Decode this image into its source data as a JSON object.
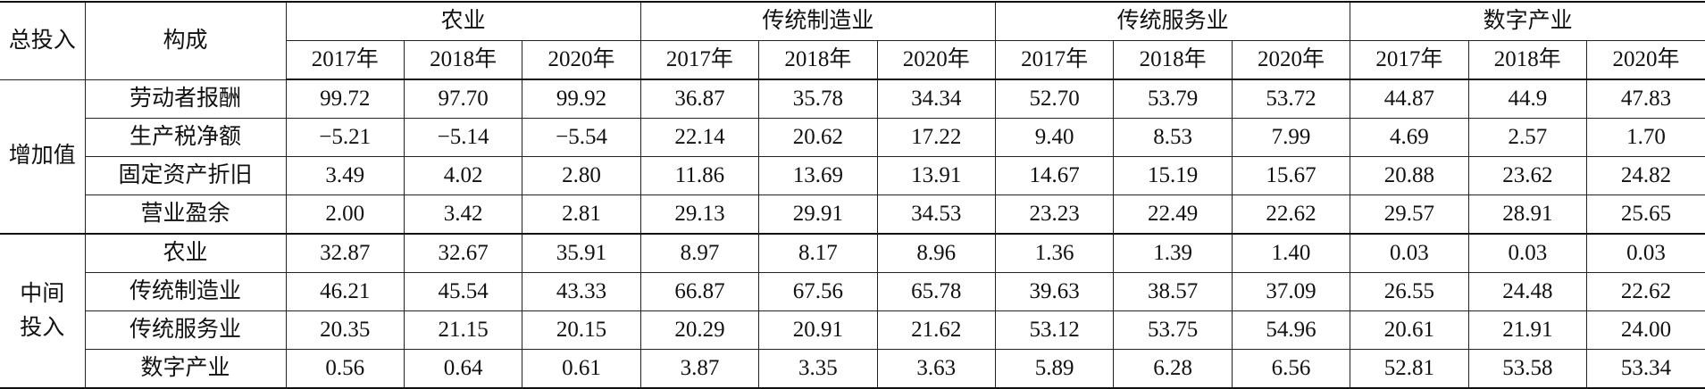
{
  "table": {
    "header": {
      "total": "总投入",
      "composition": "构成",
      "sectors": [
        "农业",
        "传统制造业",
        "传统服务业",
        "数字产业"
      ],
      "years": [
        "2017年",
        "2018年",
        "2020年",
        "2017年",
        "2018年",
        "2020年",
        "2017年",
        "2018年",
        "2020年",
        "2017年",
        "2018年",
        "2020年"
      ]
    },
    "groups": [
      {
        "label": "增加值",
        "rows": [
          {
            "label": "劳动者报酬",
            "values": [
              "99.72",
              "97.70",
              "99.92",
              "36.87",
              "35.78",
              "34.34",
              "52.70",
              "53.79",
              "53.72",
              "44.87",
              "44.9",
              "47.83"
            ]
          },
          {
            "label": "生产税净额",
            "values": [
              "−5.21",
              "−5.14",
              "−5.54",
              "22.14",
              "20.62",
              "17.22",
              "9.40",
              "8.53",
              "7.99",
              "4.69",
              "2.57",
              "1.70"
            ]
          },
          {
            "label": "固定资产折旧",
            "values": [
              "3.49",
              "4.02",
              "2.80",
              "11.86",
              "13.69",
              "13.91",
              "14.67",
              "15.19",
              "15.67",
              "20.88",
              "23.62",
              "24.82"
            ]
          },
          {
            "label": "营业盈余",
            "values": [
              "2.00",
              "3.42",
              "2.81",
              "29.13",
              "29.91",
              "34.53",
              "23.23",
              "22.49",
              "22.62",
              "29.57",
              "28.91",
              "25.65"
            ]
          }
        ]
      },
      {
        "label": "中间\n投入",
        "rows": [
          {
            "label": "农业",
            "values": [
              "32.87",
              "32.67",
              "35.91",
              "8.97",
              "8.17",
              "8.96",
              "1.36",
              "1.39",
              "1.40",
              "0.03",
              "0.03",
              "0.03"
            ]
          },
          {
            "label": "传统制造业",
            "values": [
              "46.21",
              "45.54",
              "43.33",
              "66.87",
              "67.56",
              "65.78",
              "39.63",
              "38.57",
              "37.09",
              "26.55",
              "24.48",
              "22.62"
            ]
          },
          {
            "label": "传统服务业",
            "values": [
              "20.35",
              "21.15",
              "20.15",
              "20.29",
              "20.91",
              "21.62",
              "53.12",
              "53.75",
              "54.96",
              "20.61",
              "21.91",
              "24.00"
            ]
          },
          {
            "label": "数字产业",
            "values": [
              "0.56",
              "0.64",
              "0.61",
              "3.87",
              "3.35",
              "3.63",
              "5.89",
              "6.28",
              "6.56",
              "52.81",
              "53.58",
              "53.34"
            ]
          }
        ]
      }
    ]
  }
}
